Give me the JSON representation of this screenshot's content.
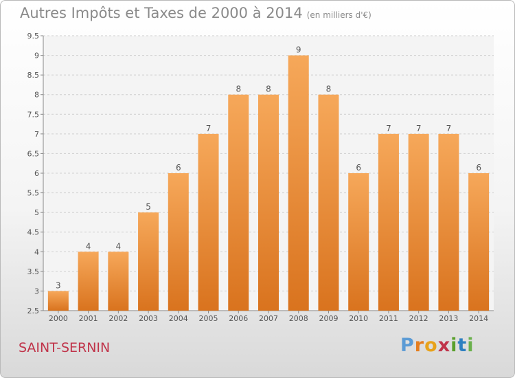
{
  "header": {
    "title": "Autres Impôts et Taxes de 2000 à 2014",
    "subtitle": "(en milliers d'€)"
  },
  "footer": {
    "town": "SAINT-SERNIN",
    "logo_letters": [
      "P",
      "r",
      "o",
      "x",
      "i",
      "t",
      "i"
    ]
  },
  "chart_data": {
    "type": "bar",
    "title": "Autres Impôts et Taxes de 2000 à 2014",
    "subtitle": "(en milliers d'€)",
    "categories": [
      "2000",
      "2001",
      "2002",
      "2003",
      "2004",
      "2005",
      "2006",
      "2007",
      "2008",
      "2009",
      "2010",
      "2011",
      "2012",
      "2013",
      "2014"
    ],
    "values": [
      3,
      4,
      4,
      5,
      6,
      7,
      8,
      8,
      9,
      8,
      6,
      7,
      7,
      7,
      6
    ],
    "ylim": [
      2.5,
      9.5
    ],
    "yticks": [
      "2.5",
      "3",
      "3.5",
      "4",
      "4.5",
      "5",
      "5.5",
      "6",
      "6.5",
      "7",
      "7.5",
      "8",
      "8.5",
      "9",
      "9.5"
    ],
    "grid": true,
    "bar_color": "#e8862f",
    "xlabel": "",
    "ylabel": ""
  }
}
